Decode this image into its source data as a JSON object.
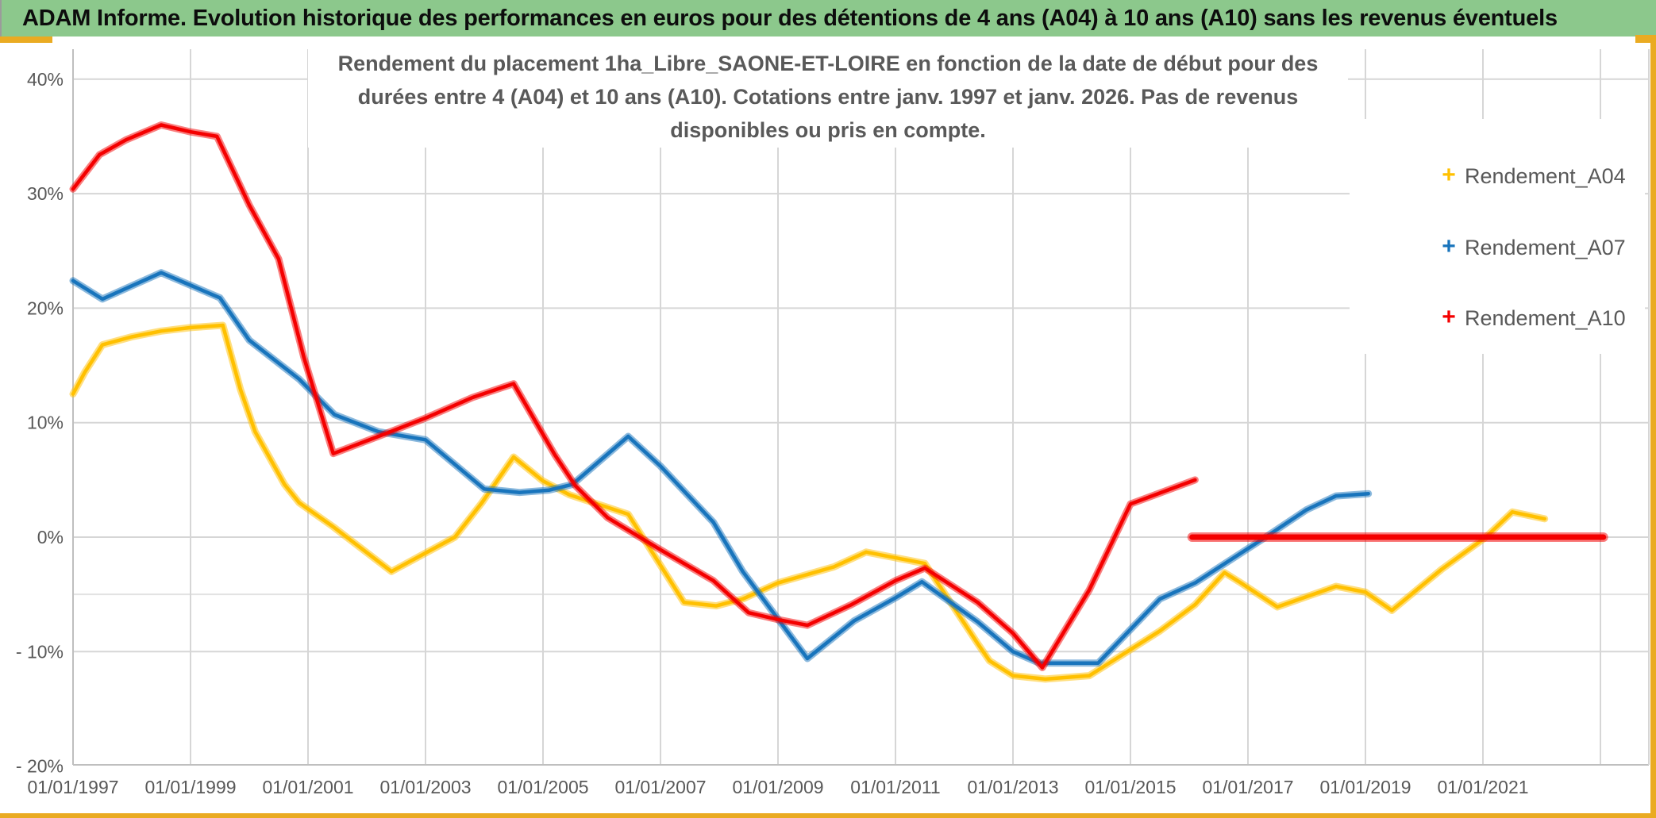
{
  "header": {
    "title": "ADAM Informe. Evolution historique des performances en euros pour des détentions de 4 ans (A04) à 10 ans (A10) sans les revenus éventuels"
  },
  "chart_data": {
    "type": "line",
    "title": "Rendement du placement 1ha_Libre_SAONE-ET-LOIRE en fonction de la date de début pour des durées entre 4 (A04) et 10 ans (A10). Cotations entre janv. 1997 et janv. 2026. Pas de revenus disponibles ou pris en compte.",
    "xlabel": "",
    "ylabel": "",
    "x_range": [
      1997.0,
      2023.85
    ],
    "ylim": [
      -20,
      40
    ],
    "grid": "on",
    "legend_position": "right-inside",
    "y_ticks": [
      {
        "value": 40,
        "label": "40%"
      },
      {
        "value": 30,
        "label": "30%"
      },
      {
        "value": 20,
        "label": "20%"
      },
      {
        "value": 10,
        "label": "10%"
      },
      {
        "value": 0,
        "label": "0%"
      },
      {
        "value": -10,
        "label": "- 10%"
      },
      {
        "value": -20,
        "label": "- 20%"
      }
    ],
    "minor_y_line": -5,
    "x_ticks": [
      {
        "year": 1997,
        "label": "01/01/1997"
      },
      {
        "year": 1999,
        "label": "01/01/1999"
      },
      {
        "year": 2001,
        "label": "01/01/2001"
      },
      {
        "year": 2003,
        "label": "01/01/2003"
      },
      {
        "year": 2005,
        "label": "01/01/2005"
      },
      {
        "year": 2007,
        "label": "01/01/2007"
      },
      {
        "year": 2009,
        "label": "01/01/2009"
      },
      {
        "year": 2011,
        "label": "01/01/2011"
      },
      {
        "year": 2013,
        "label": "01/01/2013"
      },
      {
        "year": 2015,
        "label": "01/01/2015"
      },
      {
        "year": 2017,
        "label": "01/01/2017"
      },
      {
        "year": 2019,
        "label": "01/01/2019"
      },
      {
        "year": 2021,
        "label": "01/01/2021"
      }
    ],
    "grid_years": [
      1999,
      2001,
      2003,
      2005,
      2007,
      2009,
      2011,
      2013,
      2015,
      2017,
      2019,
      2021,
      2023
    ],
    "series": [
      {
        "name": "Rendement_A04",
        "color": "#FFC000",
        "points": [
          [
            1997.0,
            12.5
          ],
          [
            1997.2,
            14.4
          ],
          [
            1997.5,
            16.8
          ],
          [
            1998.0,
            17.5
          ],
          [
            1998.5,
            18.0
          ],
          [
            1999.0,
            18.3
          ],
          [
            1999.55,
            18.5
          ],
          [
            1999.85,
            12.9
          ],
          [
            2000.1,
            9.2
          ],
          [
            2000.6,
            4.6
          ],
          [
            2000.85,
            3.0
          ],
          [
            2001.43,
            0.9
          ],
          [
            2002.42,
            -3.0
          ],
          [
            2003.5,
            0.0
          ],
          [
            2003.96,
            3.0
          ],
          [
            2004.5,
            7.0
          ],
          [
            2005.0,
            4.9
          ],
          [
            2005.45,
            3.7
          ],
          [
            2006.45,
            2.0
          ],
          [
            2007.4,
            -5.7
          ],
          [
            2007.95,
            -6.0
          ],
          [
            2008.4,
            -5.4
          ],
          [
            2009.0,
            -4.0
          ],
          [
            2009.95,
            -2.6
          ],
          [
            2010.5,
            -1.3
          ],
          [
            2011.1,
            -1.9
          ],
          [
            2011.5,
            -2.3
          ],
          [
            2012.4,
            -9.3
          ],
          [
            2012.6,
            -10.8
          ],
          [
            2013.0,
            -12.1
          ],
          [
            2013.55,
            -12.4
          ],
          [
            2014.3,
            -12.1
          ],
          [
            2015.5,
            -8.2
          ],
          [
            2016.1,
            -5.9
          ],
          [
            2016.6,
            -3.1
          ],
          [
            2016.85,
            -3.9
          ],
          [
            2017.5,
            -6.1
          ],
          [
            2018.5,
            -4.3
          ],
          [
            2019.0,
            -4.8
          ],
          [
            2019.45,
            -6.4
          ],
          [
            2020.3,
            -2.8
          ],
          [
            2021.05,
            0.0
          ],
          [
            2021.5,
            2.2
          ],
          [
            2022.05,
            1.6
          ]
        ]
      },
      {
        "name": "Rendement_A07",
        "color": "#1874BC",
        "points": [
          [
            1997.0,
            22.4
          ],
          [
            1997.5,
            20.8
          ],
          [
            1998.5,
            23.1
          ],
          [
            1999.0,
            22.0
          ],
          [
            1999.5,
            20.9
          ],
          [
            2000.0,
            17.2
          ],
          [
            2000.85,
            13.8
          ],
          [
            2001.45,
            10.7
          ],
          [
            2002.2,
            9.2
          ],
          [
            2003.0,
            8.5
          ],
          [
            2004.0,
            4.2
          ],
          [
            2004.6,
            3.9
          ],
          [
            2005.1,
            4.1
          ],
          [
            2005.5,
            4.6
          ],
          [
            2006.45,
            8.8
          ],
          [
            2007.0,
            6.2
          ],
          [
            2007.9,
            1.3
          ],
          [
            2008.4,
            -3.0
          ],
          [
            2009.5,
            -10.6
          ],
          [
            2010.3,
            -7.3
          ],
          [
            2011.0,
            -5.3
          ],
          [
            2011.45,
            -3.9
          ],
          [
            2012.4,
            -7.4
          ],
          [
            2013.0,
            -10.0
          ],
          [
            2013.45,
            -11.0
          ],
          [
            2014.45,
            -11.0
          ],
          [
            2015.5,
            -5.4
          ],
          [
            2016.1,
            -4.0
          ],
          [
            2017.3,
            0.0
          ],
          [
            2018.0,
            2.4
          ],
          [
            2018.5,
            3.6
          ],
          [
            2019.05,
            3.8
          ]
        ]
      },
      {
        "name": "Rendement_A10",
        "color": "#F40000",
        "points": [
          [
            1997.0,
            30.4
          ],
          [
            1997.45,
            33.4
          ],
          [
            1997.9,
            34.7
          ],
          [
            1998.5,
            36.0
          ],
          [
            1999.0,
            35.4
          ],
          [
            1999.45,
            35.0
          ],
          [
            2000.0,
            29.0
          ],
          [
            2000.5,
            24.3
          ],
          [
            2000.93,
            15.7
          ],
          [
            2001.43,
            7.3
          ],
          [
            2002.3,
            9.0
          ],
          [
            2003.0,
            10.4
          ],
          [
            2003.8,
            12.2
          ],
          [
            2004.5,
            13.4
          ],
          [
            2005.2,
            7.2
          ],
          [
            2005.55,
            4.5
          ],
          [
            2006.1,
            1.7
          ],
          [
            2007.0,
            -1.1
          ],
          [
            2007.9,
            -3.8
          ],
          [
            2008.5,
            -6.6
          ],
          [
            2009.0,
            -7.2
          ],
          [
            2009.5,
            -7.7
          ],
          [
            2010.25,
            -5.9
          ],
          [
            2011.0,
            -3.8
          ],
          [
            2011.5,
            -2.7
          ],
          [
            2012.4,
            -5.7
          ],
          [
            2013.0,
            -8.4
          ],
          [
            2013.5,
            -11.4
          ],
          [
            2014.3,
            -4.6
          ],
          [
            2015.0,
            2.9
          ],
          [
            2016.1,
            5.0
          ]
        ]
      },
      {
        "name": "Rendement_A10_flat_zero",
        "color": "#F40000",
        "legend": false,
        "thick": true,
        "points": [
          [
            2016.05,
            0.0
          ],
          [
            2023.05,
            0.0
          ]
        ]
      }
    ],
    "legend": [
      {
        "label": "Rendement_A04",
        "marker": "+",
        "color": "#FFC000"
      },
      {
        "label": "Rendement_A07",
        "marker": "+",
        "color": "#1874BC"
      },
      {
        "label": "Rendement_A10",
        "marker": "+",
        "color": "#F40000"
      }
    ]
  },
  "colors": {
    "titlebar_bg": "#8cc88c",
    "title_text": "#0d0d0d",
    "gold_border": "#eaab22",
    "grid": "#d6d6d6",
    "minor_grid": "#e2e2e2",
    "axis_line": "#bfbfbf",
    "axis_text": "#595959",
    "legend_bg": "#ffffff"
  }
}
